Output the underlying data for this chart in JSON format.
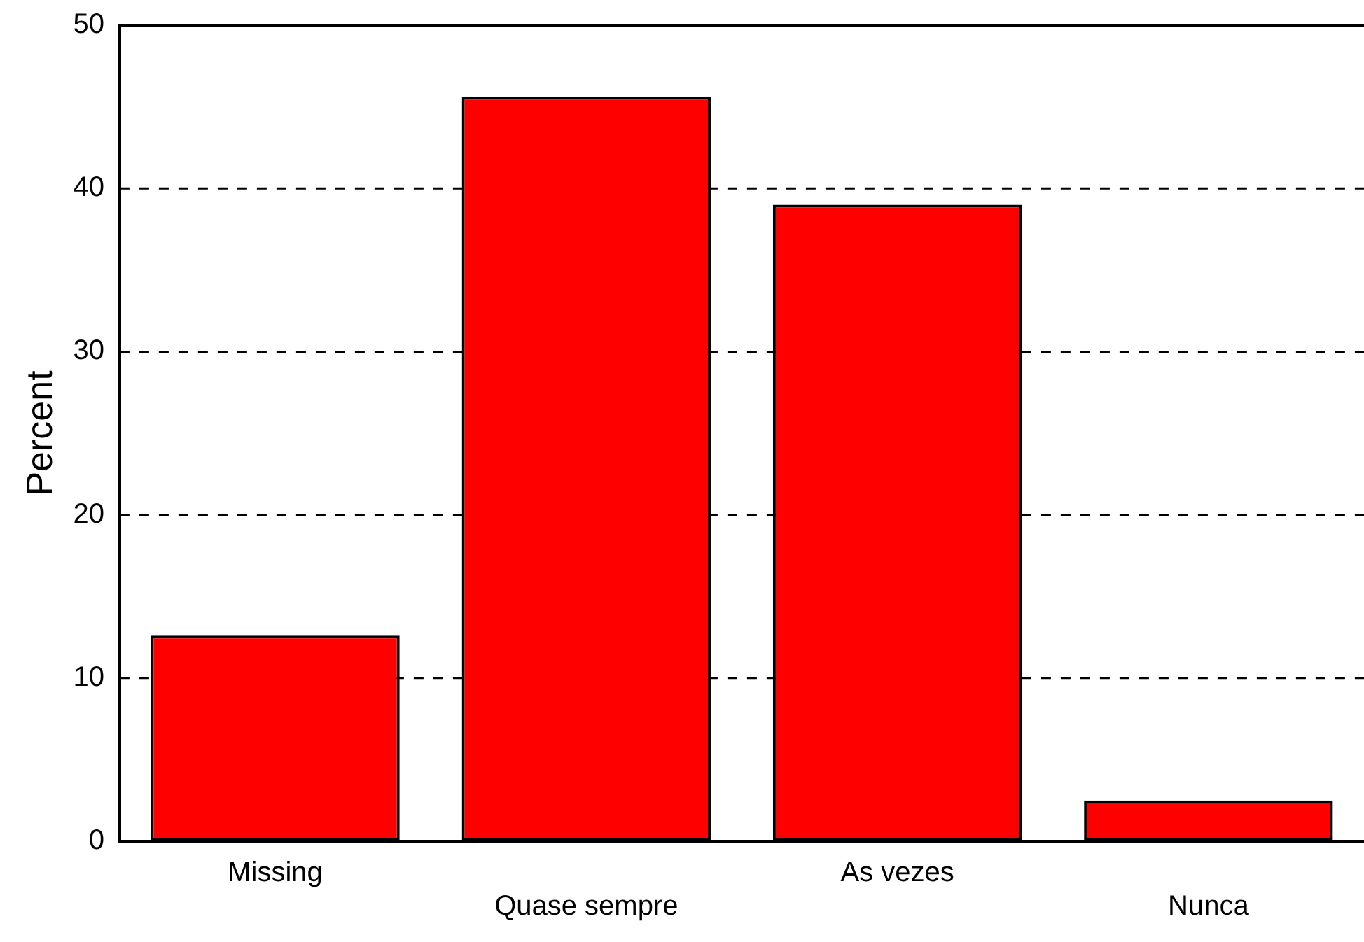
{
  "chart_data": {
    "type": "bar",
    "ylabel": "Percent",
    "categories": [
      "Missing",
      "Quase sempre",
      "As vezes",
      "Nunca"
    ],
    "values": [
      12.6,
      45.6,
      39.0,
      2.5
    ],
    "color": "#ff0000",
    "ylim": [
      0,
      50
    ],
    "yticks": [
      0,
      10,
      20,
      30,
      40,
      50
    ],
    "grid": "y",
    "line_style": "dashed"
  }
}
